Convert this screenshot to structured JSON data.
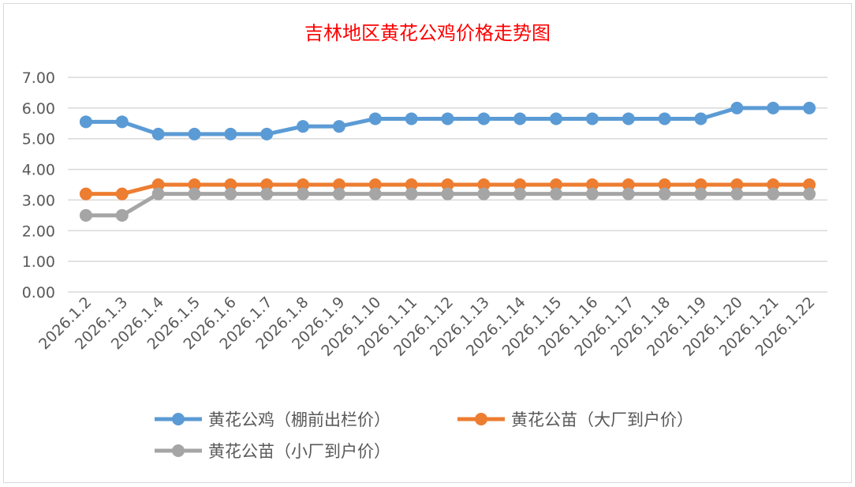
{
  "chart_data": {
    "type": "line",
    "title": "吉林地区黄花公鸡价格走势图",
    "title_color": "#ff0000",
    "categories": [
      "2026.1.2",
      "2026.1.3",
      "2026.1.4",
      "2026.1.5",
      "2026.1.6",
      "2026.1.7",
      "2026.1.8",
      "2026.1.9",
      "2026.1.10",
      "2026.1.11",
      "2026.1.12",
      "2026.1.13",
      "2026.1.14",
      "2026.1.15",
      "2026.1.16",
      "2026.1.17",
      "2026.1.18",
      "2026.1.19",
      "2026.1.20",
      "2026.1.21",
      "2026.1.22"
    ],
    "yticks": [
      "0.00",
      "1.00",
      "2.00",
      "3.00",
      "4.00",
      "5.00",
      "6.00",
      "7.00"
    ],
    "ylim": [
      0,
      7
    ],
    "grid": true,
    "legend_position": "bottom",
    "series": [
      {
        "name": "黄花公鸡（棚前出栏价）",
        "color": "#5b9bd5",
        "values": [
          5.55,
          5.55,
          5.15,
          5.15,
          5.15,
          5.15,
          5.4,
          5.4,
          5.65,
          5.65,
          5.65,
          5.65,
          5.65,
          5.65,
          5.65,
          5.65,
          5.65,
          5.65,
          6.0,
          6.0,
          6.0
        ]
      },
      {
        "name": "黄花公苗（大厂到户价）",
        "color": "#ed7d31",
        "values": [
          3.2,
          3.2,
          3.5,
          3.5,
          3.5,
          3.5,
          3.5,
          3.5,
          3.5,
          3.5,
          3.5,
          3.5,
          3.5,
          3.5,
          3.5,
          3.5,
          3.5,
          3.5,
          3.5,
          3.5,
          3.5
        ]
      },
      {
        "name": "黄花公苗（小厂到户价）",
        "color": "#a5a5a5",
        "values": [
          2.5,
          2.5,
          3.2,
          3.2,
          3.2,
          3.2,
          3.2,
          3.2,
          3.2,
          3.2,
          3.2,
          3.2,
          3.2,
          3.2,
          3.2,
          3.2,
          3.2,
          3.2,
          3.2,
          3.2,
          3.2
        ]
      }
    ]
  }
}
